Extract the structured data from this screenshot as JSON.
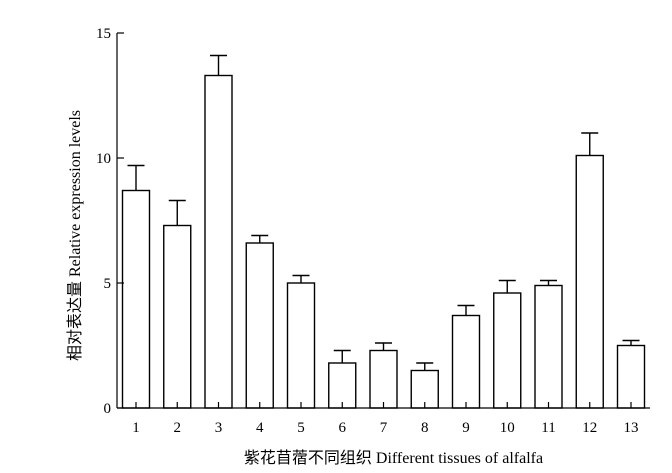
{
  "chart_data": {
    "type": "bar",
    "categories": [
      "1",
      "2",
      "3",
      "4",
      "5",
      "6",
      "7",
      "8",
      "9",
      "10",
      "11",
      "12",
      "13"
    ],
    "series": [
      {
        "values": [
          8.7,
          7.3,
          13.3,
          6.6,
          5.0,
          1.8,
          2.3,
          1.5,
          3.7,
          4.6,
          4.9,
          10.1,
          2.5
        ],
        "errors": [
          1.0,
          1.0,
          0.8,
          0.3,
          0.3,
          0.5,
          0.3,
          0.3,
          0.4,
          0.5,
          0.2,
          0.9,
          0.2
        ]
      }
    ],
    "xlabel": "紫花苜蓿不同组织 Different tissues of alfalfa",
    "ylabel": "相对表达量 Relative expression levels",
    "ylim": [
      0,
      15
    ],
    "yticks": [
      0,
      5,
      10,
      15
    ],
    "grid": false,
    "legend": "none"
  }
}
